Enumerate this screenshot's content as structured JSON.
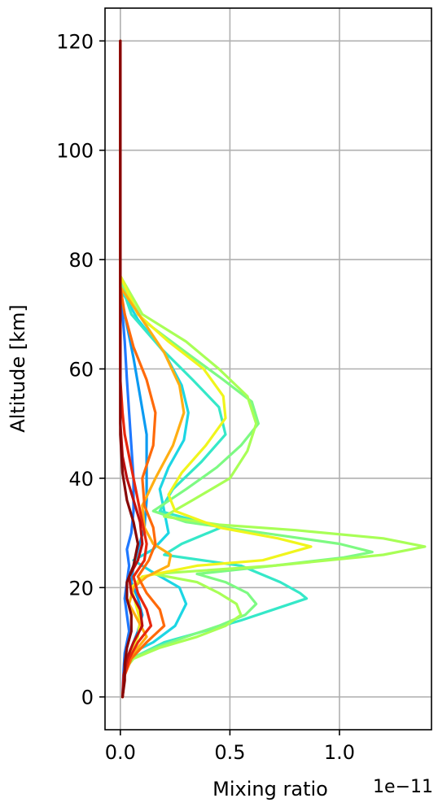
{
  "chart_data": {
    "type": "line",
    "orientation": "profile",
    "xlabel": "Mixing ratio",
    "ylabel": "Altitude [km]",
    "x_offset_label": "1e−11",
    "xlim": [
      -0.07,
      1.42
    ],
    "ylim": [
      -6,
      126
    ],
    "xticks": [
      0.0,
      0.5,
      1.0
    ],
    "xtick_labels": [
      "0.0",
      "0.5",
      "1.0"
    ],
    "yticks": [
      0,
      20,
      40,
      60,
      80,
      100,
      120
    ],
    "ytick_labels": [
      "0",
      "20",
      "40",
      "60",
      "80",
      "100",
      "120"
    ],
    "grid": true,
    "legend": "none",
    "units_scale": 1e-11,
    "series": [
      {
        "color": "#1f78ff",
        "points": [
          [
            0.01,
            0
          ],
          [
            0.015,
            5
          ],
          [
            0.02,
            8
          ],
          [
            0.03,
            10
          ],
          [
            0.04,
            12
          ],
          [
            0.03,
            15
          ],
          [
            0.02,
            18
          ],
          [
            0.03,
            21
          ],
          [
            0.04,
            24
          ],
          [
            0.03,
            27
          ],
          [
            0.05,
            30
          ],
          [
            0.06,
            34
          ],
          [
            0.06,
            40
          ],
          [
            0.05,
            46
          ],
          [
            0.04,
            52
          ],
          [
            0.03,
            58
          ],
          [
            0.02,
            65
          ],
          [
            0.01,
            70
          ],
          [
            0.0,
            76
          ],
          [
            0.0,
            120
          ]
        ]
      },
      {
        "color": "#0b9bf2",
        "points": [
          [
            0.01,
            0
          ],
          [
            0.02,
            5
          ],
          [
            0.04,
            8
          ],
          [
            0.06,
            10
          ],
          [
            0.08,
            12
          ],
          [
            0.1,
            15
          ],
          [
            0.08,
            18
          ],
          [
            0.05,
            21
          ],
          [
            0.06,
            24
          ],
          [
            0.08,
            27
          ],
          [
            0.11,
            31
          ],
          [
            0.12,
            36
          ],
          [
            0.12,
            42
          ],
          [
            0.12,
            48
          ],
          [
            0.09,
            55
          ],
          [
            0.06,
            62
          ],
          [
            0.03,
            68
          ],
          [
            0.01,
            72
          ],
          [
            0.0,
            76
          ],
          [
            0.0,
            120
          ]
        ]
      },
      {
        "color": "#1cd6e4",
        "points": [
          [
            0.01,
            0
          ],
          [
            0.02,
            5
          ],
          [
            0.05,
            8
          ],
          [
            0.15,
            10
          ],
          [
            0.25,
            13
          ],
          [
            0.3,
            17
          ],
          [
            0.27,
            20
          ],
          [
            0.14,
            23
          ],
          [
            0.06,
            25
          ],
          [
            0.15,
            27
          ],
          [
            0.22,
            30
          ],
          [
            0.2,
            34
          ],
          [
            0.18,
            38
          ],
          [
            0.22,
            42
          ],
          [
            0.29,
            47
          ],
          [
            0.31,
            52
          ],
          [
            0.28,
            57
          ],
          [
            0.2,
            63
          ],
          [
            0.08,
            69
          ],
          [
            0.01,
            74
          ],
          [
            0.0,
            76
          ],
          [
            0.0,
            120
          ]
        ]
      },
      {
        "color": "#35e8c8",
        "points": [
          [
            0.01,
            0
          ],
          [
            0.02,
            5
          ],
          [
            0.05,
            7
          ],
          [
            0.2,
            10
          ],
          [
            0.38,
            12
          ],
          [
            0.55,
            14
          ],
          [
            0.7,
            16
          ],
          [
            0.85,
            18
          ],
          [
            0.82,
            19
          ],
          [
            0.73,
            21
          ],
          [
            0.55,
            24
          ],
          [
            0.2,
            26
          ],
          [
            0.28,
            28
          ],
          [
            0.46,
            31
          ],
          [
            0.18,
            34
          ],
          [
            0.24,
            38
          ],
          [
            0.37,
            43
          ],
          [
            0.48,
            48
          ],
          [
            0.45,
            53
          ],
          [
            0.33,
            58
          ],
          [
            0.18,
            64
          ],
          [
            0.05,
            70
          ],
          [
            0.0,
            76
          ],
          [
            0.0,
            120
          ]
        ]
      },
      {
        "color": "#7dfa82",
        "points": [
          [
            0.01,
            0
          ],
          [
            0.02,
            5
          ],
          [
            0.05,
            7
          ],
          [
            0.16,
            9
          ],
          [
            0.3,
            11
          ],
          [
            0.45,
            13
          ],
          [
            0.57,
            15
          ],
          [
            0.62,
            17
          ],
          [
            0.58,
            19
          ],
          [
            0.48,
            21
          ],
          [
            0.35,
            22.5
          ],
          [
            0.7,
            24
          ],
          [
            1.02,
            25.5
          ],
          [
            1.15,
            26.5
          ],
          [
            1.0,
            28
          ],
          [
            0.65,
            30
          ],
          [
            0.3,
            32
          ],
          [
            0.15,
            34
          ],
          [
            0.3,
            38
          ],
          [
            0.44,
            42
          ],
          [
            0.55,
            46
          ],
          [
            0.63,
            50
          ],
          [
            0.6,
            54
          ],
          [
            0.47,
            58
          ],
          [
            0.3,
            63
          ],
          [
            0.1,
            69
          ],
          [
            0.0,
            76
          ],
          [
            0.0,
            120
          ]
        ]
      },
      {
        "color": "#a8ff56",
        "points": [
          [
            0.01,
            0
          ],
          [
            0.02,
            5
          ],
          [
            0.06,
            7
          ],
          [
            0.18,
            9
          ],
          [
            0.35,
            11
          ],
          [
            0.48,
            13
          ],
          [
            0.55,
            15
          ],
          [
            0.53,
            17
          ],
          [
            0.45,
            19
          ],
          [
            0.35,
            21
          ],
          [
            0.15,
            22.5
          ],
          [
            0.7,
            24
          ],
          [
            1.2,
            26
          ],
          [
            1.39,
            27.5
          ],
          [
            1.2,
            29
          ],
          [
            0.8,
            30.5
          ],
          [
            0.45,
            31.5
          ],
          [
            0.2,
            33
          ],
          [
            0.33,
            36
          ],
          [
            0.5,
            40
          ],
          [
            0.58,
            45
          ],
          [
            0.62,
            50
          ],
          [
            0.58,
            55
          ],
          [
            0.45,
            60
          ],
          [
            0.3,
            65
          ],
          [
            0.1,
            70
          ],
          [
            0.0,
            77
          ],
          [
            0.0,
            120
          ]
        ]
      },
      {
        "color": "#f0f51c",
        "points": [
          [
            0.01,
            0
          ],
          [
            0.02,
            5
          ],
          [
            0.04,
            8
          ],
          [
            0.08,
            11
          ],
          [
            0.09,
            14
          ],
          [
            0.07,
            17
          ],
          [
            0.05,
            20
          ],
          [
            0.1,
            22
          ],
          [
            0.35,
            24
          ],
          [
            0.65,
            25
          ],
          [
            0.87,
            27.5
          ],
          [
            0.72,
            29
          ],
          [
            0.45,
            31
          ],
          [
            0.25,
            34
          ],
          [
            0.22,
            37
          ],
          [
            0.28,
            41
          ],
          [
            0.39,
            46
          ],
          [
            0.48,
            51
          ],
          [
            0.47,
            55
          ],
          [
            0.38,
            60
          ],
          [
            0.22,
            65
          ],
          [
            0.08,
            70
          ],
          [
            0.0,
            77
          ],
          [
            0.0,
            120
          ]
        ]
      },
      {
        "color": "#ffae12",
        "points": [
          [
            0.01,
            0
          ],
          [
            0.02,
            5
          ],
          [
            0.06,
            8
          ],
          [
            0.12,
            11
          ],
          [
            0.08,
            14
          ],
          [
            0.04,
            17
          ],
          [
            0.06,
            20
          ],
          [
            0.12,
            22
          ],
          [
            0.22,
            24
          ],
          [
            0.23,
            26
          ],
          [
            0.15,
            28
          ],
          [
            0.11,
            31
          ],
          [
            0.1,
            35
          ],
          [
            0.16,
            40
          ],
          [
            0.24,
            46
          ],
          [
            0.29,
            52
          ],
          [
            0.27,
            57
          ],
          [
            0.2,
            63
          ],
          [
            0.1,
            69
          ],
          [
            0.0,
            75
          ],
          [
            0.0,
            120
          ]
        ]
      },
      {
        "color": "#ff6a0a",
        "points": [
          [
            0.01,
            0
          ],
          [
            0.02,
            4
          ],
          [
            0.05,
            7
          ],
          [
            0.12,
            10
          ],
          [
            0.2,
            13
          ],
          [
            0.18,
            16
          ],
          [
            0.12,
            19
          ],
          [
            0.08,
            22
          ],
          [
            0.13,
            25
          ],
          [
            0.16,
            28
          ],
          [
            0.15,
            31
          ],
          [
            0.11,
            35
          ],
          [
            0.1,
            40
          ],
          [
            0.15,
            46
          ],
          [
            0.16,
            52
          ],
          [
            0.12,
            58
          ],
          [
            0.06,
            64
          ],
          [
            0.02,
            70
          ],
          [
            0.0,
            75
          ],
          [
            0.0,
            120
          ]
        ]
      },
      {
        "color": "#e8280e",
        "points": [
          [
            0.01,
            0
          ],
          [
            0.02,
            4
          ],
          [
            0.04,
            7
          ],
          [
            0.08,
            10
          ],
          [
            0.14,
            13
          ],
          [
            0.12,
            16
          ],
          [
            0.08,
            19
          ],
          [
            0.06,
            22
          ],
          [
            0.11,
            25
          ],
          [
            0.12,
            28
          ],
          [
            0.1,
            32
          ],
          [
            0.08,
            36
          ],
          [
            0.06,
            40
          ],
          [
            0.04,
            44
          ],
          [
            0.02,
            48
          ],
          [
            0.01,
            52
          ],
          [
            0.0,
            58
          ],
          [
            0.0,
            120
          ]
        ]
      },
      {
        "color": "#bc1010",
        "points": [
          [
            0.01,
            0
          ],
          [
            0.015,
            4
          ],
          [
            0.03,
            7
          ],
          [
            0.06,
            10
          ],
          [
            0.1,
            13
          ],
          [
            0.09,
            16
          ],
          [
            0.05,
            19
          ],
          [
            0.04,
            22
          ],
          [
            0.08,
            25
          ],
          [
            0.1,
            28
          ],
          [
            0.09,
            32
          ],
          [
            0.06,
            36
          ],
          [
            0.03,
            40
          ],
          [
            0.01,
            44
          ],
          [
            0.0,
            50
          ],
          [
            0.0,
            120
          ]
        ]
      },
      {
        "color": "#870808",
        "points": [
          [
            0.01,
            0
          ],
          [
            0.02,
            3
          ],
          [
            0.02,
            6
          ],
          [
            0.03,
            9
          ],
          [
            0.05,
            12
          ],
          [
            0.05,
            15
          ],
          [
            0.03,
            18
          ],
          [
            0.03,
            21
          ],
          [
            0.06,
            24
          ],
          [
            0.08,
            28
          ],
          [
            0.06,
            32
          ],
          [
            0.03,
            36
          ],
          [
            0.01,
            41
          ],
          [
            0.0,
            48
          ],
          [
            0.0,
            120
          ]
        ]
      }
    ]
  }
}
